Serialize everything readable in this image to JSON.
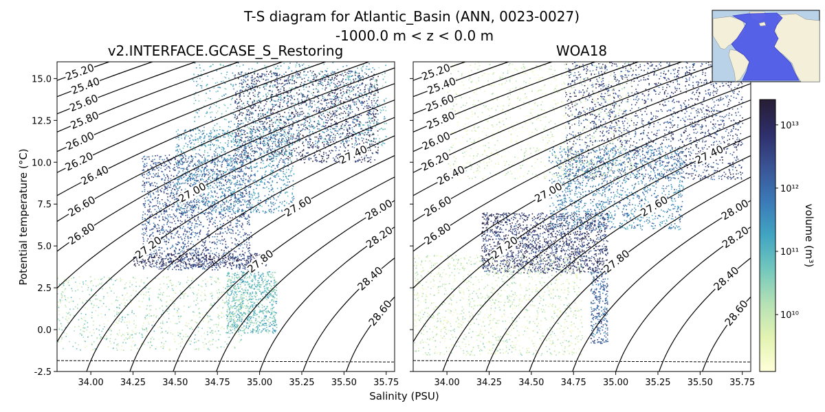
{
  "figure": {
    "title_line1": "T-S diagram for Atlantic_Basin (ANN, 0023-0027)",
    "title_line2": "-1000.0 m < z < 0.0 m"
  },
  "chart_data": [
    {
      "type": "scatter",
      "title": "v2.INTERFACE.GCASE_S_Restoring",
      "xlabel": "Salinity (PSU)",
      "ylabel": "Potential temperature (°C)",
      "xlim": [
        33.8,
        35.8
      ],
      "ylim": [
        -2.5,
        16.0
      ],
      "xticks": [
        "34.00",
        "34.25",
        "34.50",
        "34.75",
        "35.00",
        "35.25",
        "35.50",
        "35.75"
      ],
      "yticks": [
        "-2.5",
        "0.0",
        "2.5",
        "5.0",
        "7.5",
        "10.0",
        "12.5",
        "15.0"
      ],
      "density_contours": [
        "25.20",
        "25.40",
        "25.60",
        "25.80",
        "26.00",
        "26.20",
        "26.40",
        "26.60",
        "26.80",
        "27.00",
        "27.20",
        "27.40",
        "27.60",
        "27.80",
        "28.00",
        "28.20",
        "28.40",
        "28.60"
      ],
      "freezing_line_temp": -1.85,
      "point_clouds": [
        {
          "s": [
            34.85,
            35.7
          ],
          "t": [
            10.0,
            15.5
          ],
          "level": 0.85,
          "n": 1800
        },
        {
          "s": [
            34.3,
            34.95
          ],
          "t": [
            3.6,
            10.5
          ],
          "level": 0.75,
          "n": 1800
        },
        {
          "s": [
            34.25,
            35.05
          ],
          "t": [
            3.8,
            4.6
          ],
          "level": 0.9,
          "n": 400
        },
        {
          "s": [
            34.5,
            35.2
          ],
          "t": [
            7.0,
            12.0
          ],
          "level": 0.55,
          "n": 1200
        },
        {
          "s": [
            34.8,
            35.1
          ],
          "t": [
            -0.2,
            3.5
          ],
          "level": 0.4,
          "n": 900
        },
        {
          "s": [
            33.8,
            34.9
          ],
          "t": [
            -1.2,
            3.2
          ],
          "level": 0.25,
          "n": 900
        },
        {
          "s": [
            34.6,
            35.75
          ],
          "t": [
            11.0,
            16.0
          ],
          "level": 0.45,
          "n": 900
        }
      ]
    },
    {
      "type": "scatter",
      "title": "WOA18",
      "xlabel": "Salinity (PSU)",
      "xlim": [
        33.8,
        35.8
      ],
      "ylim": [
        -2.5,
        16.0
      ],
      "xticks": [
        "34.00",
        "34.25",
        "34.50",
        "34.75",
        "35.00",
        "35.25",
        "35.50",
        "35.75"
      ],
      "density_contours": [
        "25.20",
        "25.40",
        "25.60",
        "25.80",
        "26.00",
        "26.20",
        "26.40",
        "26.60",
        "26.80",
        "27.00",
        "27.20",
        "27.40",
        "27.60",
        "27.80",
        "28.00",
        "28.20",
        "28.40",
        "28.60"
      ],
      "freezing_line_temp": -1.85,
      "point_clouds": [
        {
          "s": [
            34.2,
            34.95
          ],
          "t": [
            3.4,
            7.0
          ],
          "level": 0.85,
          "n": 1800
        },
        {
          "s": [
            34.7,
            35.75
          ],
          "t": [
            9.0,
            16.0
          ],
          "level": 0.8,
          "n": 2000
        },
        {
          "s": [
            34.6,
            35.4
          ],
          "t": [
            6.0,
            11.0
          ],
          "level": 0.6,
          "n": 1400
        },
        {
          "s": [
            34.85,
            34.95
          ],
          "t": [
            -0.8,
            3.5
          ],
          "level": 0.7,
          "n": 300
        },
        {
          "s": [
            33.8,
            34.8
          ],
          "t": [
            -1.5,
            4.5
          ],
          "level": 0.15,
          "n": 1600
        },
        {
          "s": [
            34.0,
            35.1
          ],
          "t": [
            9.0,
            16.0
          ],
          "level": 0.12,
          "n": 1200
        }
      ]
    }
  ],
  "colorbar": {
    "label": "volume (m³)",
    "tick_labels": [
      "10¹⁰",
      "10¹¹",
      "10¹²",
      "10¹³"
    ],
    "tick_exponents": [
      10,
      11,
      12,
      13
    ],
    "log_min": 9.1,
    "log_max": 13.4,
    "colors": [
      "#ffffd9",
      "#e3f3b2",
      "#b5e1b5",
      "#73c8bd",
      "#41a5c2",
      "#3b7ab8",
      "#3a5495",
      "#2e2e6a",
      "#271d33"
    ]
  },
  "inset_map": {
    "land_color": "#f3efd9",
    "ocean_color": "#b9d2e8",
    "basin_color": "#4b56e8"
  }
}
